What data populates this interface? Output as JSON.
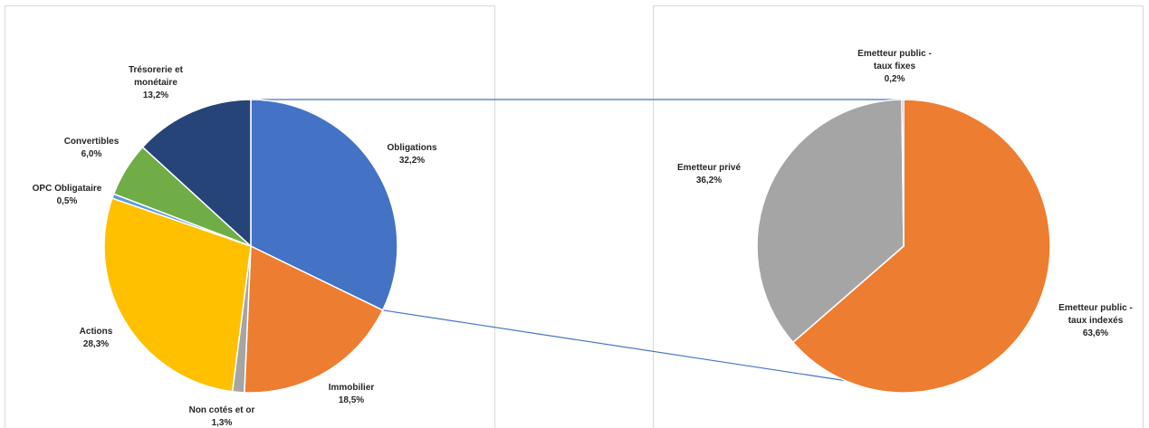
{
  "chart_data": [
    {
      "type": "pie",
      "title": "",
      "slices": [
        {
          "label_lines": [
            "Obligations"
          ],
          "value_label": "32,2%",
          "value": 32.2,
          "color": "#4472c4"
        },
        {
          "label_lines": [
            "Immobilier"
          ],
          "value_label": "18,5%",
          "value": 18.5,
          "color": "#ed7d31"
        },
        {
          "label_lines": [
            "Non cotés et or"
          ],
          "value_label": "1,3%",
          "value": 1.3,
          "color": "#a5a5a5"
        },
        {
          "label_lines": [
            "Actions"
          ],
          "value_label": "28,3%",
          "value": 28.3,
          "color": "#ffc000"
        },
        {
          "label_lines": [
            "OPC Obligataire"
          ],
          "value_label": "0,5%",
          "value": 0.5,
          "color": "#5b9bd5"
        },
        {
          "label_lines": [
            "Convertibles"
          ],
          "value_label": "6,0%",
          "value": 6.0,
          "color": "#70ad47"
        },
        {
          "label_lines": [
            "Trésorerie et",
            "monétaire"
          ],
          "value_label": "13,2%",
          "value": 13.2,
          "color": "#264478"
        }
      ]
    },
    {
      "type": "pie",
      "title": "",
      "slices": [
        {
          "label_lines": [
            "Emetteur public -",
            "taux indexés"
          ],
          "value_label": "63,6%",
          "value": 63.6,
          "color": "#ed7d31"
        },
        {
          "label_lines": [
            "Emetteur privé"
          ],
          "value_label": "36,2%",
          "value": 36.2,
          "color": "#a5a5a5"
        },
        {
          "label_lines": [
            "Emetteur public -",
            "taux fixes"
          ],
          "value_label": "0,2%",
          "value": 0.2,
          "color": "#4472c4"
        }
      ]
    }
  ]
}
